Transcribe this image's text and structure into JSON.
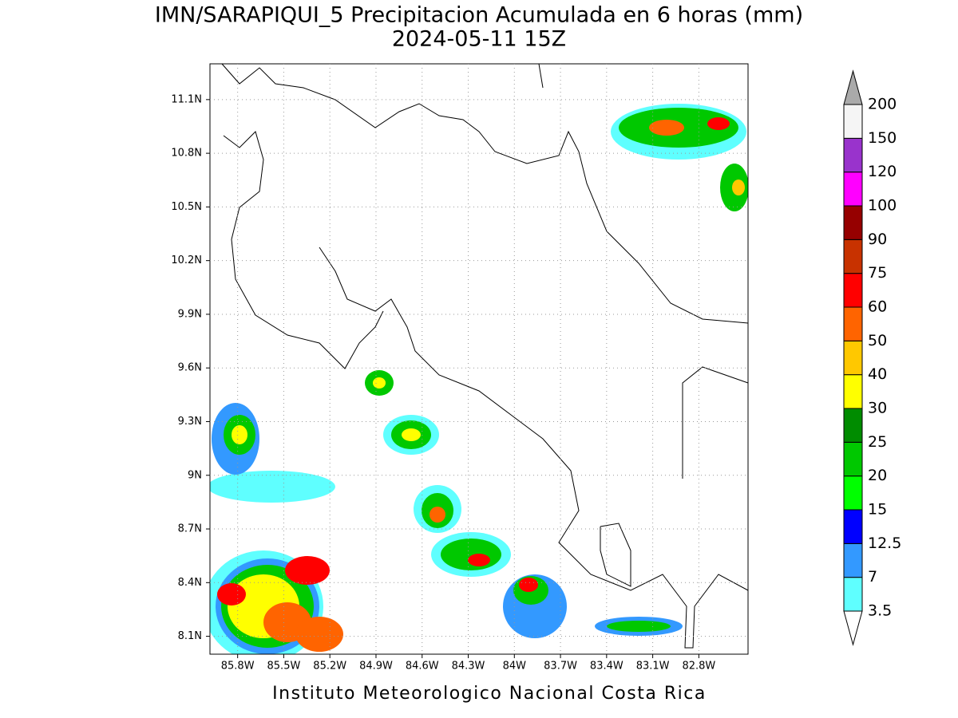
{
  "chart_data": {
    "type": "map",
    "title": "IMN/SARAPIQUI_5 Precipitacion Acumulada en 6 horas (mm)",
    "subtitle": "2024-05-11 15Z",
    "footer": "Instituto Meteorologico Nacional Costa Rica",
    "xlim": [
      -85.98,
      -82.48
    ],
    "ylim": [
      8.0,
      11.3
    ],
    "xticks": [
      {
        "value": -85.8,
        "label": "85.8W"
      },
      {
        "value": -85.5,
        "label": "85.5W"
      },
      {
        "value": -85.2,
        "label": "85.2W"
      },
      {
        "value": -84.9,
        "label": "84.9W"
      },
      {
        "value": -84.6,
        "label": "84.6W"
      },
      {
        "value": -84.3,
        "label": "84.3W"
      },
      {
        "value": -84.0,
        "label": "84W"
      },
      {
        "value": -83.7,
        "label": "83.7W"
      },
      {
        "value": -83.4,
        "label": "83.4W"
      },
      {
        "value": -83.1,
        "label": "83.1W"
      },
      {
        "value": -82.8,
        "label": "82.8W"
      }
    ],
    "yticks": [
      {
        "value": 8.1,
        "label": "8.1N"
      },
      {
        "value": 8.4,
        "label": "8.4N"
      },
      {
        "value": 8.7,
        "label": "8.7N"
      },
      {
        "value": 9.0,
        "label": "9N"
      },
      {
        "value": 9.3,
        "label": "9.3N"
      },
      {
        "value": 9.6,
        "label": "9.6N"
      },
      {
        "value": 9.9,
        "label": "9.9N"
      },
      {
        "value": 10.2,
        "label": "10.2N"
      },
      {
        "value": 10.5,
        "label": "10.5N"
      },
      {
        "value": 10.8,
        "label": "10.8N"
      },
      {
        "value": 11.1,
        "label": "11.1N"
      }
    ],
    "grid": true,
    "colorbar": {
      "levels": [
        3.5,
        7,
        12.5,
        15,
        20,
        25,
        30,
        40,
        50,
        60,
        75,
        90,
        100,
        120,
        150,
        200
      ],
      "colors": [
        "#5fffff",
        "#3399ff",
        "#0000ff",
        "#00ff00",
        "#00c800",
        "#008c00",
        "#ffff00",
        "#ffc800",
        "#ff6400",
        "#ff0000",
        "#c83200",
        "#960000",
        "#ff00ff",
        "#9933cc",
        "#f5f5f5"
      ],
      "under_color": "#ffffff",
      "over_color": "#aaaaaa"
    }
  }
}
